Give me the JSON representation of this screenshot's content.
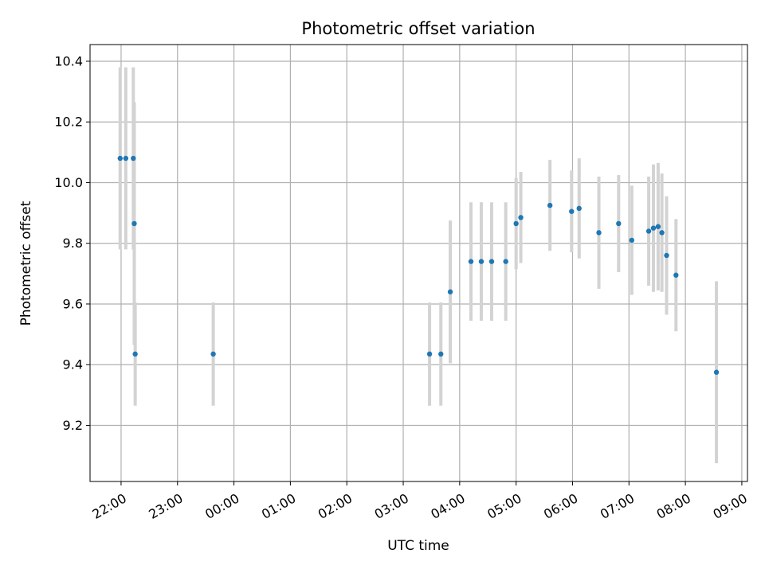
{
  "chart_data": {
    "type": "scatter",
    "title": "Photometric offset variation",
    "xlabel": "UTC time",
    "ylabel": "Photometric offset",
    "x_ticks": [
      "22:00",
      "23:00",
      "00:00",
      "01:00",
      "02:00",
      "03:00",
      "04:00",
      "05:00",
      "06:00",
      "07:00",
      "08:00",
      "09:00"
    ],
    "y_ticks": [
      "9.2",
      "9.4",
      "9.6",
      "9.8",
      "10.0",
      "10.2",
      "10.4"
    ],
    "xlim": [
      "21:27",
      "09:06"
    ],
    "ylim": [
      9.015,
      10.455
    ],
    "grid": true,
    "colors": {
      "points": "#1f77b4",
      "errorbars": "#d3d3d3",
      "grid": "#b0b0b0"
    },
    "points": [
      {
        "x": "21:59",
        "y": 10.08,
        "err": 0.3
      },
      {
        "x": "22:05",
        "y": 10.08,
        "err": 0.3
      },
      {
        "x": "22:13",
        "y": 10.08,
        "err": 0.3
      },
      {
        "x": "22:14",
        "y": 9.865,
        "err": 0.4
      },
      {
        "x": "22:15",
        "y": 9.435,
        "err": 0.17
      },
      {
        "x": "23:38",
        "y": 9.435,
        "err": 0.17
      },
      {
        "x": "03:28",
        "y": 9.435,
        "err": 0.17
      },
      {
        "x": "03:40",
        "y": 9.435,
        "err": 0.17
      },
      {
        "x": "03:50",
        "y": 9.64,
        "err": 0.235
      },
      {
        "x": "04:12",
        "y": 9.74,
        "err": 0.195
      },
      {
        "x": "04:23",
        "y": 9.74,
        "err": 0.195
      },
      {
        "x": "04:34",
        "y": 9.74,
        "err": 0.195
      },
      {
        "x": "04:49",
        "y": 9.74,
        "err": 0.195
      },
      {
        "x": "05:00",
        "y": 9.865,
        "err": 0.15
      },
      {
        "x": "05:05",
        "y": 9.885,
        "err": 0.15
      },
      {
        "x": "05:36",
        "y": 9.925,
        "err": 0.15
      },
      {
        "x": "05:59",
        "y": 9.905,
        "err": 0.135
      },
      {
        "x": "06:07",
        "y": 9.915,
        "err": 0.165
      },
      {
        "x": "06:28",
        "y": 9.835,
        "err": 0.185
      },
      {
        "x": "06:49",
        "y": 9.865,
        "err": 0.16
      },
      {
        "x": "07:03",
        "y": 9.81,
        "err": 0.18
      },
      {
        "x": "07:21",
        "y": 9.84,
        "err": 0.18
      },
      {
        "x": "07:26",
        "y": 9.85,
        "err": 0.21
      },
      {
        "x": "07:31",
        "y": 9.855,
        "err": 0.21
      },
      {
        "x": "07:35",
        "y": 9.835,
        "err": 0.195
      },
      {
        "x": "07:40",
        "y": 9.76,
        "err": 0.195
      },
      {
        "x": "07:50",
        "y": 9.695,
        "err": 0.185
      },
      {
        "x": "08:33",
        "y": 9.375,
        "err": 0.3
      }
    ]
  }
}
